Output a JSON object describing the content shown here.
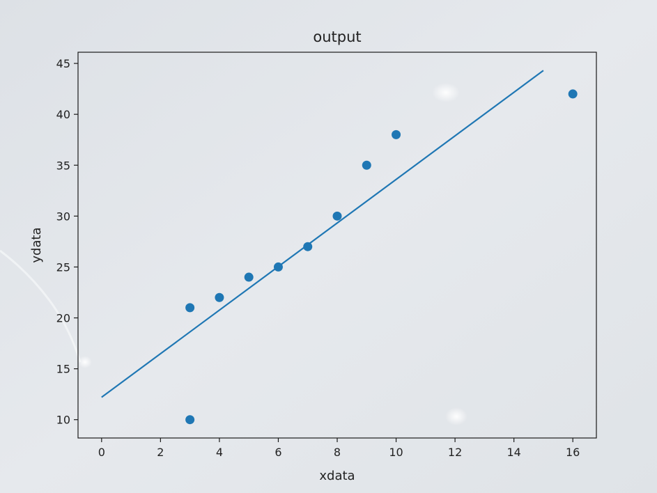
{
  "chart_data": {
    "type": "scatter",
    "title": "output",
    "xlabel": "xdata",
    "ylabel": "ydata",
    "xlim": [
      -0.8,
      16.8
    ],
    "ylim": [
      8.2,
      46.1
    ],
    "x_ticks": [
      0,
      2,
      4,
      6,
      8,
      10,
      12,
      14,
      16
    ],
    "y_ticks": [
      10,
      15,
      20,
      25,
      30,
      35,
      40,
      45
    ],
    "grid": false,
    "series": [
      {
        "type": "scatter",
        "color": "#1f77b4",
        "points": [
          {
            "x": 3,
            "y": 10
          },
          {
            "x": 3,
            "y": 21
          },
          {
            "x": 4,
            "y": 22
          },
          {
            "x": 5,
            "y": 24
          },
          {
            "x": 6,
            "y": 25
          },
          {
            "x": 7,
            "y": 27
          },
          {
            "x": 8,
            "y": 30
          },
          {
            "x": 9,
            "y": 35
          },
          {
            "x": 10,
            "y": 38
          },
          {
            "x": 16,
            "y": 42
          }
        ]
      },
      {
        "type": "line",
        "color": "#1f77b4",
        "points": [
          {
            "x": 0,
            "y": 12.2
          },
          {
            "x": 15,
            "y": 44.3
          }
        ]
      }
    ]
  }
}
